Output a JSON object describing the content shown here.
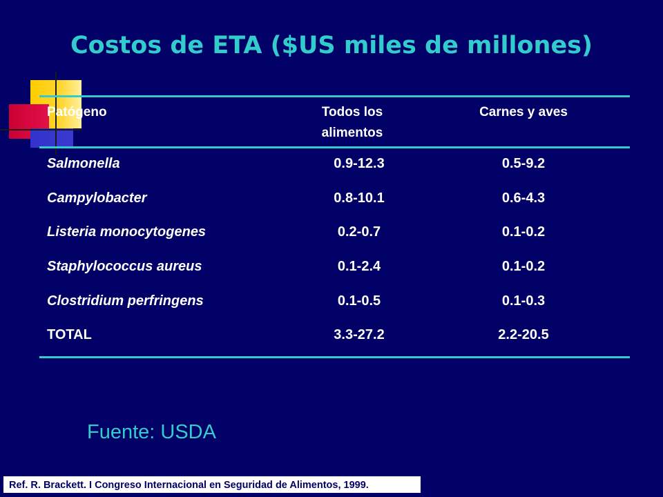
{
  "slide": {
    "title": "Costos de ETA ($US miles de millones)",
    "table": {
      "headers": {
        "pathogen": "Patógeno",
        "all_foods_line1": "Todos los",
        "all_foods_line2": "alimentos",
        "meat_poultry": "Carnes y aves"
      },
      "rows": [
        {
          "name": "Salmonella",
          "all_foods": "0.9-12.3",
          "meat_poultry": "0.5-9.2"
        },
        {
          "name": "Campylobacter",
          "all_foods": "0.8-10.1",
          "meat_poultry": "0.6-4.3"
        },
        {
          "name": "Listeria monocytogenes",
          "all_foods": "0.2-0.7",
          "meat_poultry": "0.1-0.2"
        },
        {
          "name": "Staphylococcus aureus",
          "all_foods": "0.1-2.4",
          "meat_poultry": "0.1-0.2"
        },
        {
          "name": "Clostridium perfringens",
          "all_foods": "0.1-0.5",
          "meat_poultry": "0.1-0.3"
        },
        {
          "name": "TOTAL",
          "all_foods": "3.3-27.2",
          "meat_poultry": "2.2-20.5"
        }
      ]
    },
    "source": "Fuente:  USDA",
    "reference": "Ref. R. Brackett. I Congreso Internacional en Seguridad de Alimentos, 1999."
  },
  "colors": {
    "background": "#000066",
    "accent": "#33cccc",
    "text": "#ffffff"
  }
}
